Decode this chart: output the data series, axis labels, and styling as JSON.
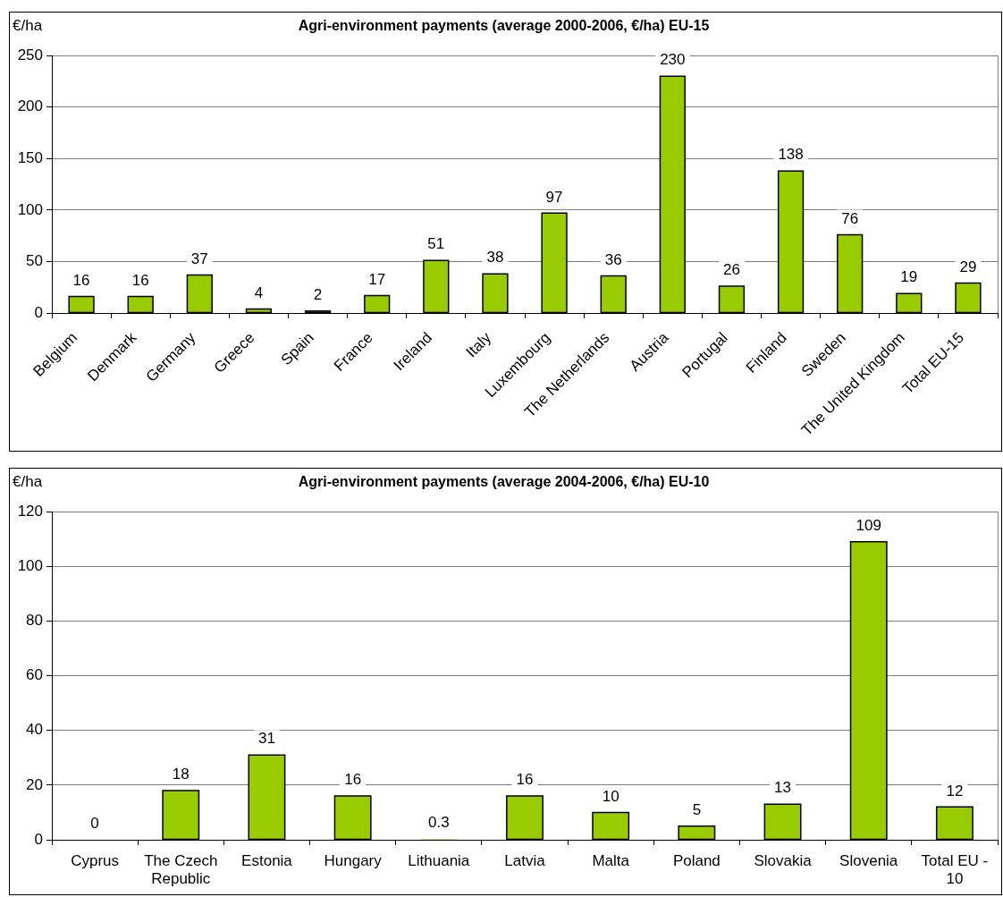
{
  "chart_data": [
    {
      "type": "bar",
      "title": "Agri-environment payments (average 2000-2006, €/ha) EU-15",
      "ylabel": "€/ha",
      "categories": [
        "Belgium",
        "Denmark",
        "Germany",
        "Greece",
        "Spain",
        "France",
        "Ireland",
        "Italy",
        "Luxembourg",
        "The Netherlands",
        "Austria",
        "Portugal",
        "Finland",
        "Sweden",
        "The United Kingdom",
        "Total EU-15"
      ],
      "values": [
        16,
        16,
        37,
        4,
        2,
        17,
        51,
        38,
        97,
        36,
        230,
        26,
        138,
        76,
        19,
        29
      ],
      "color": "#99cc00",
      "ylim": [
        0,
        250
      ],
      "yticks": [
        0,
        50,
        100,
        150,
        200,
        250
      ],
      "grid": "y",
      "data_labels": true
    },
    {
      "type": "bar",
      "title": "Agri-environment payments (average 2004-2006, €/ha) EU-10",
      "ylabel": "€/ha",
      "categories": [
        "Cyprus",
        "The Czech Republic",
        "Estonia",
        "Hungary",
        "Lithuania",
        "Latvia",
        "Malta",
        "Poland",
        "Slovakia",
        "Slovenia",
        "Total EU - 10"
      ],
      "values": [
        0,
        18,
        31,
        16,
        0.3,
        16,
        10,
        5,
        13,
        109,
        12
      ],
      "color": "#99cc00",
      "ylim": [
        0,
        120
      ],
      "yticks": [
        0,
        20,
        40,
        60,
        80,
        100,
        120
      ],
      "grid": "y",
      "data_labels": true
    }
  ]
}
